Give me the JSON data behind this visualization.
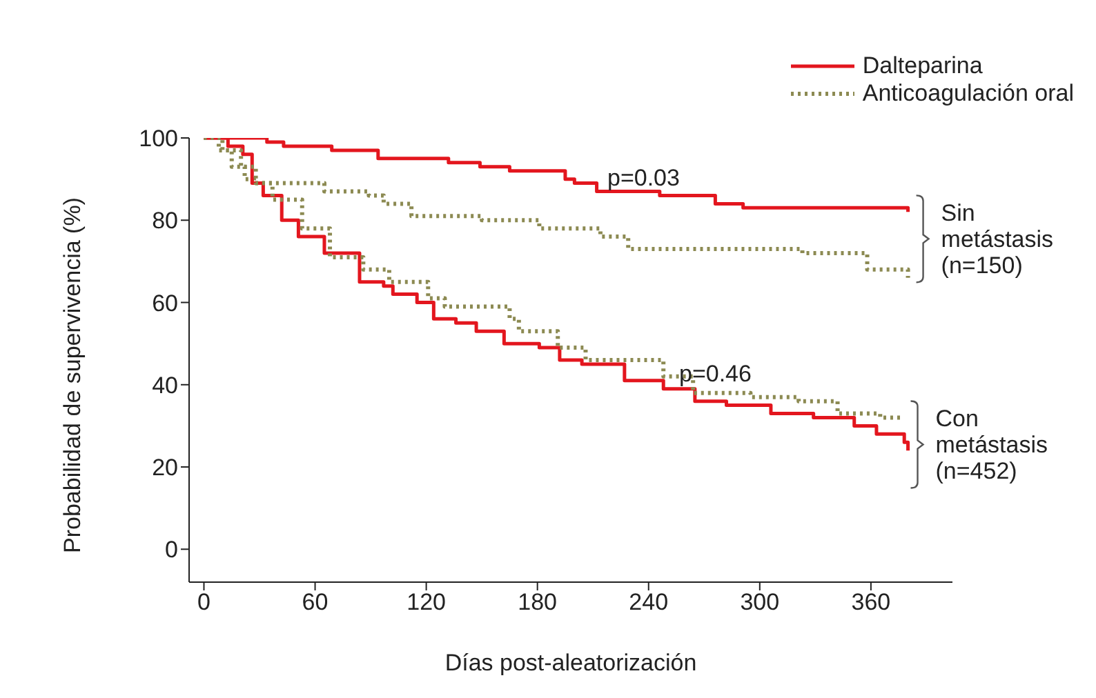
{
  "chart_data": {
    "type": "step",
    "xlabel": "Días post-aleatorización",
    "ylabel": "Probabilidad de supervivencia (%)",
    "xlim": [
      -8,
      404
    ],
    "ylim": [
      -8,
      100
    ],
    "xticks": [
      0,
      60,
      120,
      180,
      240,
      300,
      360
    ],
    "yticks": [
      0,
      20,
      40,
      60,
      80,
      100
    ],
    "grid": false,
    "legend": "top right",
    "marker": "none",
    "series": [
      {
        "name": "Dalteparina",
        "color": "#e3161e",
        "line_style": "solid",
        "x": [
          0,
          34,
          43,
          69,
          94,
          132,
          149,
          165,
          195,
          200,
          212,
          246,
          276,
          291,
          380
        ],
        "values": [
          100,
          99,
          98,
          97,
          95,
          94,
          93,
          92,
          90,
          89,
          87,
          86,
          84,
          83,
          82
        ]
      },
      {
        "name": "Anticoagulación oral",
        "color": "#8c8a52",
        "line_style": "dotted",
        "x": [
          0,
          8,
          15,
          22,
          27,
          65,
          89,
          97,
          112,
          150,
          181,
          214,
          229,
          323,
          358,
          380
        ],
        "values": [
          100,
          97,
          93,
          90,
          89,
          87,
          86,
          84,
          81,
          80,
          78,
          76,
          73,
          72,
          68,
          66
        ]
      },
      {
        "color": "#e3161e",
        "line_style": "solid",
        "x": [
          0,
          13,
          21,
          26,
          32,
          42,
          51,
          65,
          84,
          97,
          102,
          115,
          124,
          136,
          147,
          162,
          181,
          192,
          204,
          227,
          248,
          265,
          282,
          293,
          306,
          329,
          351,
          363,
          378,
          380
        ],
        "values": [
          100,
          98,
          96,
          89,
          86,
          80,
          76,
          72,
          65,
          64,
          62,
          60,
          56,
          55,
          53,
          50,
          49,
          46,
          45,
          41,
          39,
          36,
          35,
          35,
          33,
          32,
          30,
          28,
          26,
          24
        ]
      },
      {
        "color": "#8c8a52",
        "line_style": "dotted",
        "x": [
          0,
          10,
          20,
          28,
          37,
          53,
          68,
          86,
          100,
          121,
          130,
          165,
          170,
          191,
          206,
          248,
          264,
          295,
          321,
          342,
          365,
          377
        ],
        "values": [
          100,
          97,
          93,
          89,
          85,
          78,
          71,
          68,
          65,
          61,
          59,
          56,
          53,
          49,
          46,
          42,
          38,
          37,
          36,
          33,
          32,
          32
        ]
      }
    ],
    "annotations": [
      "p=0.03",
      "p=0.46",
      {
        "text": "Sin metástasis (n=150)",
        "x": 380,
        "y": 82
      },
      {
        "text": "Con metástasis (n=452)",
        "x": 377,
        "y": 32
      }
    ]
  }
}
